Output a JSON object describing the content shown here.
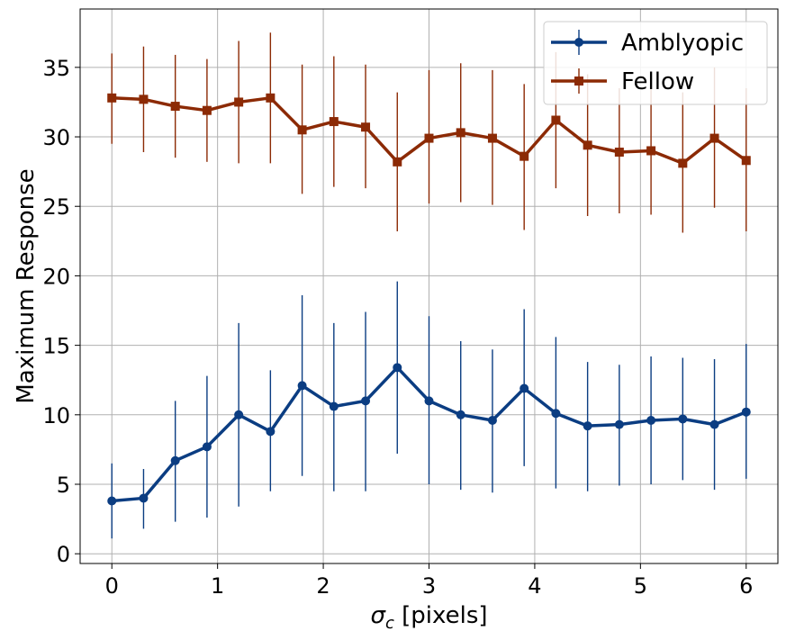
{
  "chart_data": {
    "type": "line",
    "xlabel_symbol": "σ",
    "xlabel_subscript": "c",
    "xlabel_rest": " [pixels]",
    "ylabel": "Maximum Response",
    "xlim": [
      -0.3,
      6.3
    ],
    "ylim": [
      -0.7,
      39.2
    ],
    "xticks": [
      0,
      1,
      2,
      3,
      4,
      5,
      6
    ],
    "yticks": [
      0,
      5,
      10,
      15,
      20,
      25,
      30,
      35
    ],
    "grid": true,
    "legend_position": "top-right",
    "x": [
      0,
      0.3,
      0.6,
      0.9,
      1.2,
      1.5,
      1.8,
      2.1,
      2.4,
      2.7,
      3.0,
      3.3,
      3.6,
      3.9,
      4.2,
      4.5,
      4.8,
      5.1,
      5.4,
      5.7,
      6.0
    ],
    "series": [
      {
        "name": "Amblyopic",
        "color": "#0b3d82",
        "marker": "circle",
        "values": [
          3.8,
          4.0,
          6.7,
          7.7,
          10.0,
          8.8,
          12.1,
          10.6,
          11.0,
          13.4,
          11.0,
          10.0,
          9.6,
          11.9,
          10.1,
          9.2,
          9.3,
          9.6,
          9.7,
          9.3,
          10.2
        ],
        "err_low": [
          1.1,
          1.8,
          2.3,
          2.6,
          3.4,
          4.5,
          5.6,
          4.5,
          4.5,
          7.2,
          5.0,
          4.6,
          4.4,
          6.3,
          4.7,
          4.5,
          4.9,
          5.0,
          5.3,
          4.6,
          5.4
        ],
        "err_high": [
          6.5,
          6.1,
          11.0,
          12.8,
          16.6,
          13.2,
          18.6,
          16.6,
          17.4,
          19.6,
          17.1,
          15.3,
          14.7,
          17.6,
          15.6,
          13.8,
          13.6,
          14.2,
          14.1,
          14.0,
          15.1
        ]
      },
      {
        "name": "Fellow",
        "color": "#8c2a05",
        "marker": "square",
        "values": [
          32.8,
          32.7,
          32.2,
          31.9,
          32.5,
          32.8,
          30.5,
          31.1,
          30.7,
          28.2,
          29.9,
          30.3,
          29.9,
          28.6,
          31.2,
          29.4,
          28.9,
          29.0,
          28.1,
          29.9,
          28.3
        ],
        "err_low": [
          29.5,
          28.9,
          28.5,
          28.2,
          28.1,
          28.1,
          25.9,
          26.4,
          26.3,
          23.2,
          25.2,
          25.3,
          25.1,
          23.3,
          26.3,
          24.3,
          24.5,
          24.4,
          23.1,
          24.9,
          23.2
        ],
        "err_high": [
          36.0,
          36.5,
          35.9,
          35.6,
          36.9,
          37.5,
          35.2,
          35.8,
          35.2,
          33.2,
          34.8,
          35.3,
          34.8,
          33.8,
          36.1,
          34.5,
          33.5,
          34.1,
          33.2,
          35.0,
          33.5
        ]
      }
    ]
  }
}
